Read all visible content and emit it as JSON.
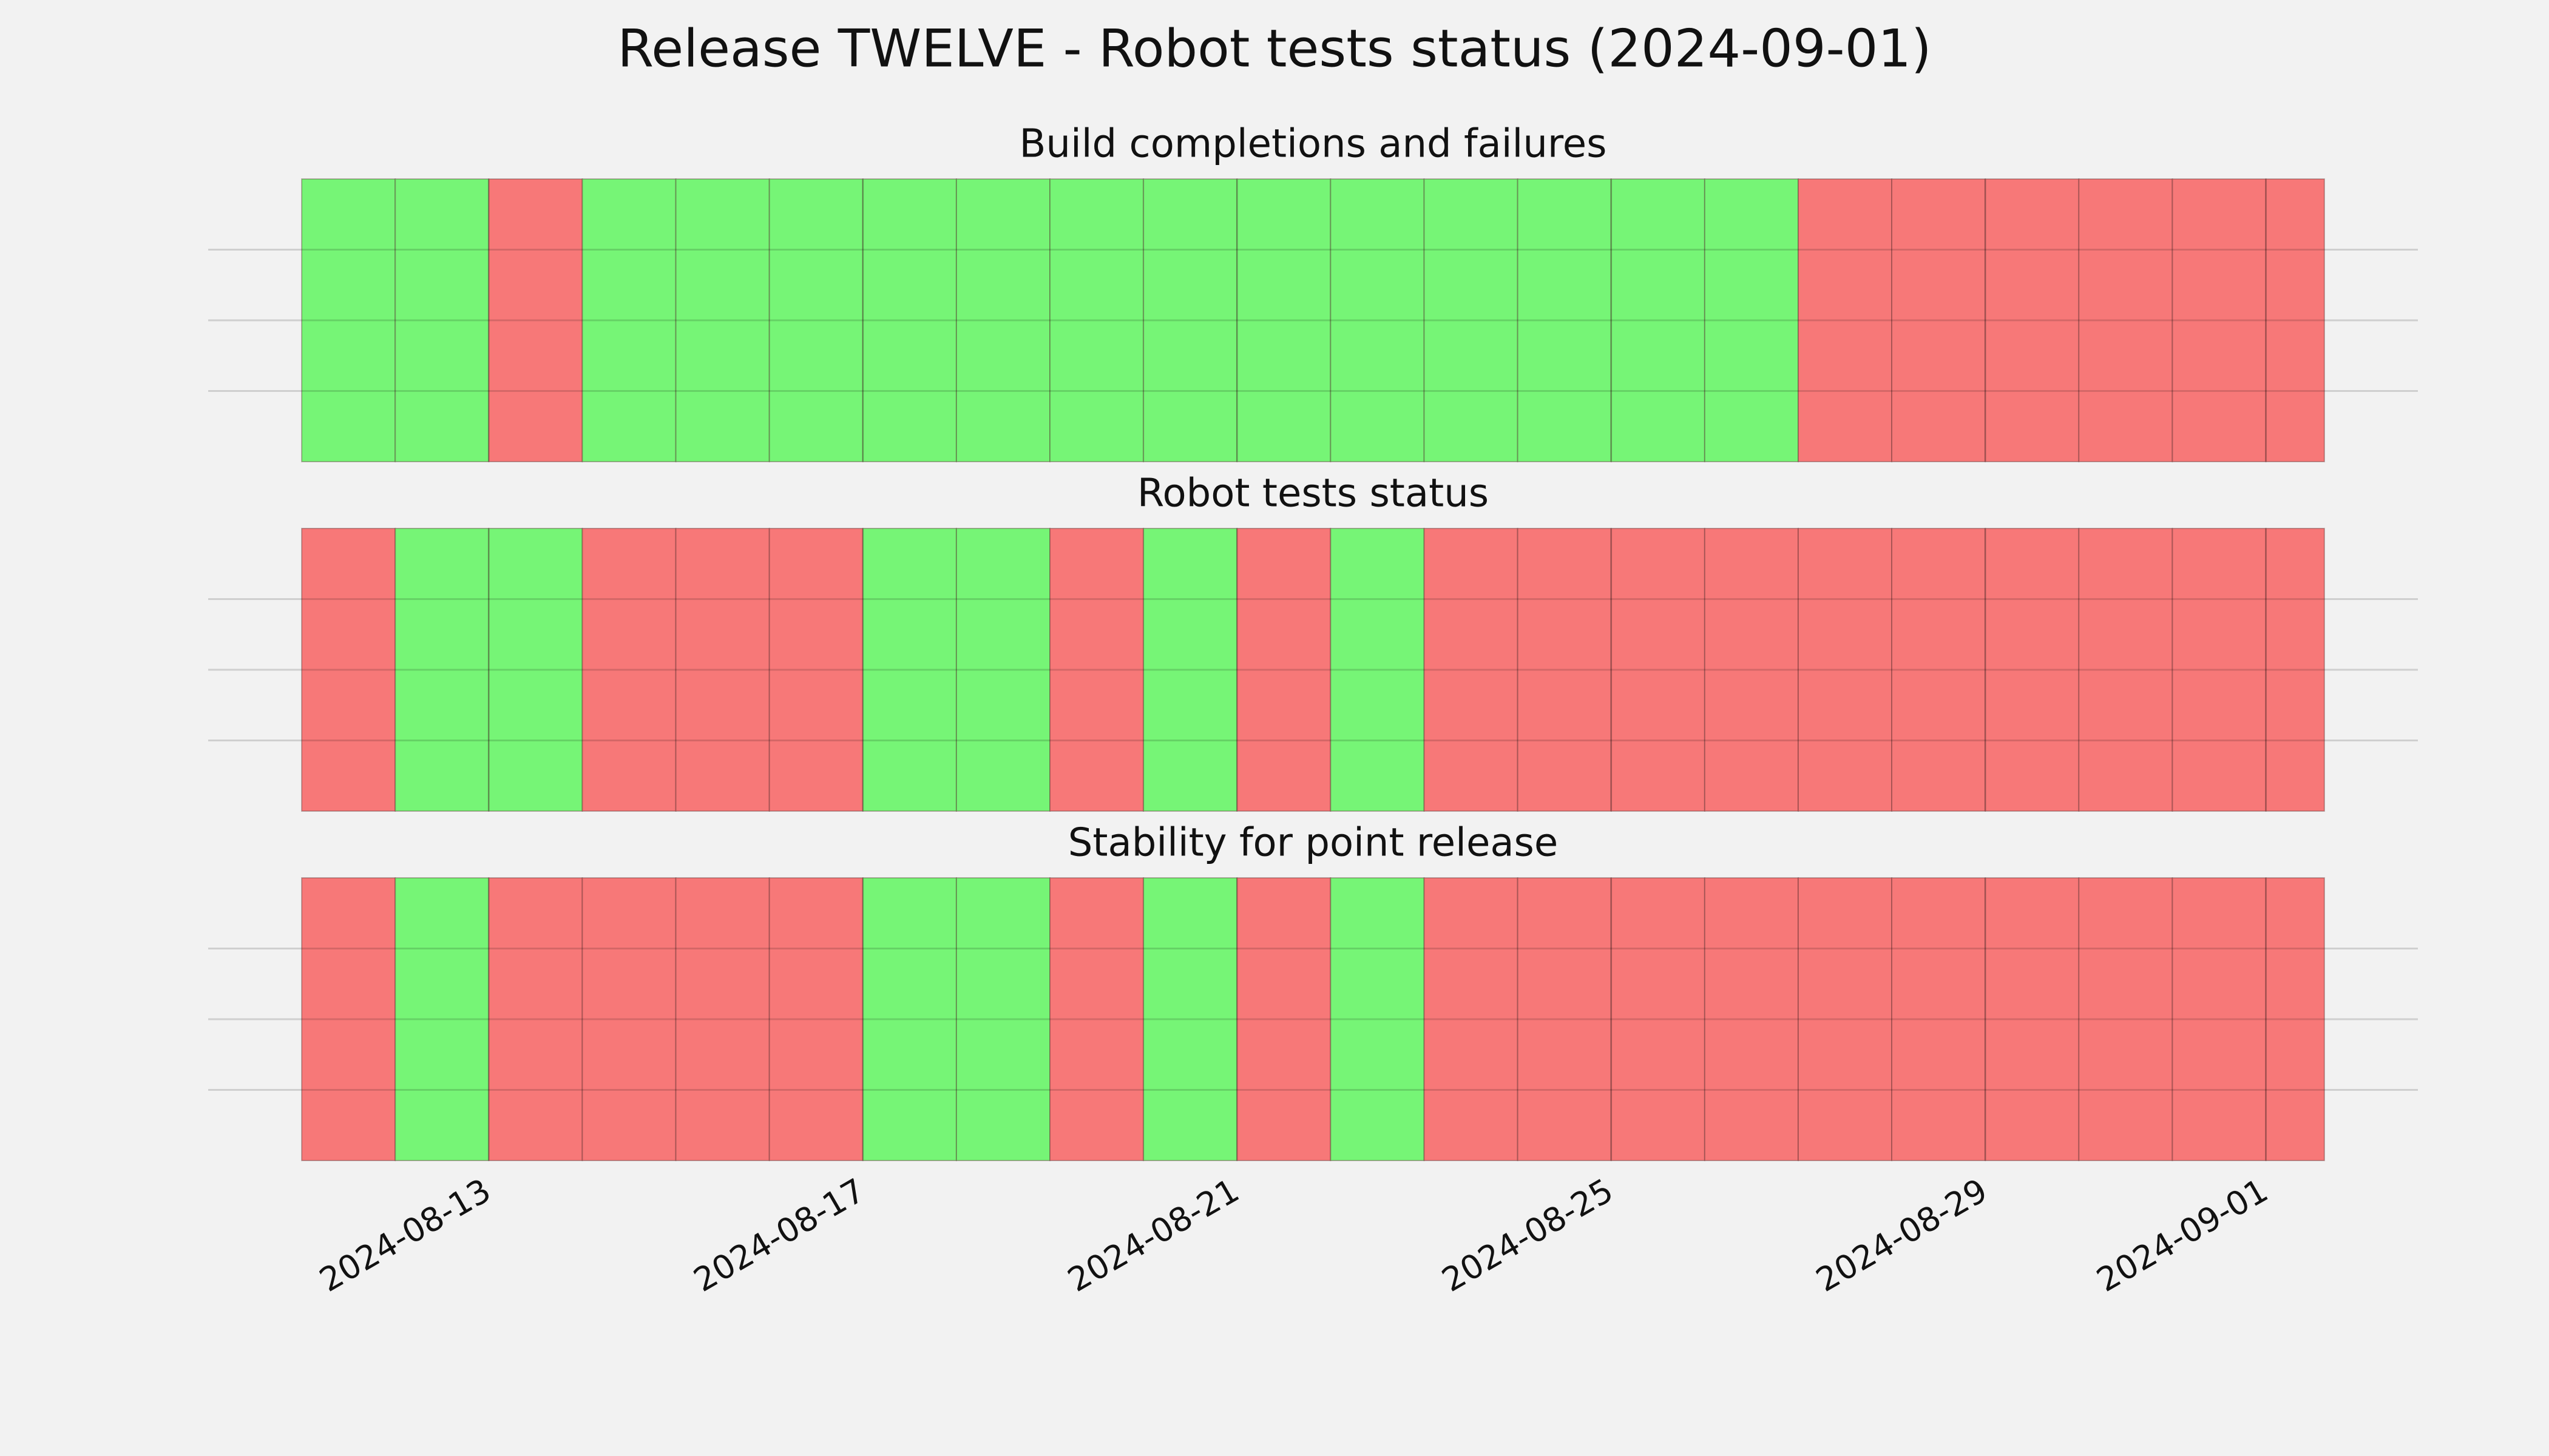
{
  "title": "Release TWELVE - Robot tests status (2024-09-01)",
  "chart_data": [
    {
      "type": "bar",
      "title": "Build completions and failures",
      "x": [
        "2024-08-11",
        "2024-08-12",
        "2024-08-13",
        "2024-08-14",
        "2024-08-15",
        "2024-08-16",
        "2024-08-17",
        "2024-08-18",
        "2024-08-19",
        "2024-08-20",
        "2024-08-21",
        "2024-08-22",
        "2024-08-23",
        "2024-08-24",
        "2024-08-25",
        "2024-08-26",
        "2024-08-27",
        "2024-08-28",
        "2024-08-29",
        "2024-08-30",
        "2024-08-31",
        "2024-09-01"
      ],
      "x_end": "2024-09-01T15:00",
      "values": [
        1,
        1,
        1,
        1,
        1,
        1,
        1,
        1,
        1,
        1,
        1,
        1,
        1,
        1,
        1,
        1,
        1,
        1,
        1,
        1,
        1,
        1
      ],
      "colors": [
        "#76f576",
        "#76f576",
        "#f77878",
        "#76f576",
        "#76f576",
        "#76f576",
        "#76f576",
        "#76f576",
        "#76f576",
        "#76f576",
        "#76f576",
        "#76f576",
        "#76f576",
        "#76f576",
        "#76f576",
        "#76f576",
        "#f77878",
        "#f77878",
        "#f77878",
        "#f77878",
        "#f77878",
        "#f77878"
      ],
      "xlim": [
        "2024-08-10",
        "2024-09-02T15:00"
      ],
      "xticks": [
        "2024-08-13",
        "2024-08-17",
        "2024-08-21",
        "2024-08-25",
        "2024-08-29",
        "2024-09-01"
      ],
      "ylim": [
        0,
        1
      ],
      "yticks": [
        0.25,
        0.5,
        0.75
      ],
      "grid": true
    },
    {
      "type": "bar",
      "title": "Robot tests status",
      "x": [
        "2024-08-11",
        "2024-08-12",
        "2024-08-13",
        "2024-08-14",
        "2024-08-15",
        "2024-08-16",
        "2024-08-17",
        "2024-08-18",
        "2024-08-19",
        "2024-08-20",
        "2024-08-21",
        "2024-08-22",
        "2024-08-23",
        "2024-08-24",
        "2024-08-25",
        "2024-08-26",
        "2024-08-27",
        "2024-08-28",
        "2024-08-29",
        "2024-08-30",
        "2024-08-31",
        "2024-09-01"
      ],
      "x_end": "2024-09-01T15:00",
      "values": [
        1,
        1,
        1,
        1,
        1,
        1,
        1,
        1,
        1,
        1,
        1,
        1,
        1,
        1,
        1,
        1,
        1,
        1,
        1,
        1,
        1,
        1
      ],
      "colors": [
        "#f77878",
        "#76f576",
        "#76f576",
        "#f77878",
        "#f77878",
        "#f77878",
        "#76f576",
        "#76f576",
        "#f77878",
        "#76f576",
        "#f77878",
        "#76f576",
        "#f77878",
        "#f77878",
        "#f77878",
        "#f77878",
        "#f77878",
        "#f77878",
        "#f77878",
        "#f77878",
        "#f77878",
        "#f77878"
      ],
      "xlim": [
        "2024-08-10",
        "2024-09-02T15:00"
      ],
      "xticks": [
        "2024-08-13",
        "2024-08-17",
        "2024-08-21",
        "2024-08-25",
        "2024-08-29",
        "2024-09-01"
      ],
      "ylim": [
        0,
        1
      ],
      "yticks": [
        0.25,
        0.5,
        0.75
      ],
      "grid": true
    },
    {
      "type": "bar",
      "title": "Stability for point release",
      "x": [
        "2024-08-11",
        "2024-08-12",
        "2024-08-13",
        "2024-08-14",
        "2024-08-15",
        "2024-08-16",
        "2024-08-17",
        "2024-08-18",
        "2024-08-19",
        "2024-08-20",
        "2024-08-21",
        "2024-08-22",
        "2024-08-23",
        "2024-08-24",
        "2024-08-25",
        "2024-08-26",
        "2024-08-27",
        "2024-08-28",
        "2024-08-29",
        "2024-08-30",
        "2024-08-31",
        "2024-09-01"
      ],
      "x_end": "2024-09-01T15:00",
      "values": [
        1,
        1,
        1,
        1,
        1,
        1,
        1,
        1,
        1,
        1,
        1,
        1,
        1,
        1,
        1,
        1,
        1,
        1,
        1,
        1,
        1,
        1
      ],
      "colors": [
        "#f77878",
        "#76f576",
        "#f77878",
        "#f77878",
        "#f77878",
        "#f77878",
        "#76f576",
        "#76f576",
        "#f77878",
        "#76f576",
        "#f77878",
        "#76f576",
        "#f77878",
        "#f77878",
        "#f77878",
        "#f77878",
        "#f77878",
        "#f77878",
        "#f77878",
        "#f77878",
        "#f77878",
        "#f77878"
      ],
      "xlim": [
        "2024-08-10",
        "2024-09-02T15:00"
      ],
      "xticks": [
        "2024-08-13",
        "2024-08-17",
        "2024-08-21",
        "2024-08-25",
        "2024-08-29",
        "2024-09-01"
      ],
      "ylim": [
        0,
        1
      ],
      "yticks": [
        0.25,
        0.5,
        0.75
      ],
      "grid": true,
      "show_xtick_labels": true
    }
  ]
}
